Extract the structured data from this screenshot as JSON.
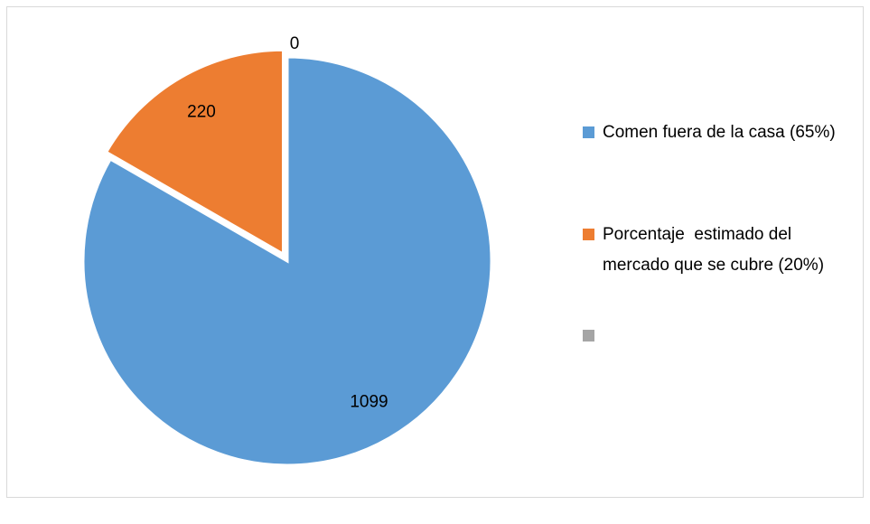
{
  "chart_data": {
    "type": "pie",
    "categories": [
      "Comen fuera de la casa (65%)",
      "Porcentaje  estimado del mercado que se cubre (20%)",
      null
    ],
    "values": [
      1099,
      220,
      0
    ],
    "colors": [
      "#5b9bd5",
      "#ed7d31",
      "#a5a5a5"
    ],
    "legend": "right"
  }
}
